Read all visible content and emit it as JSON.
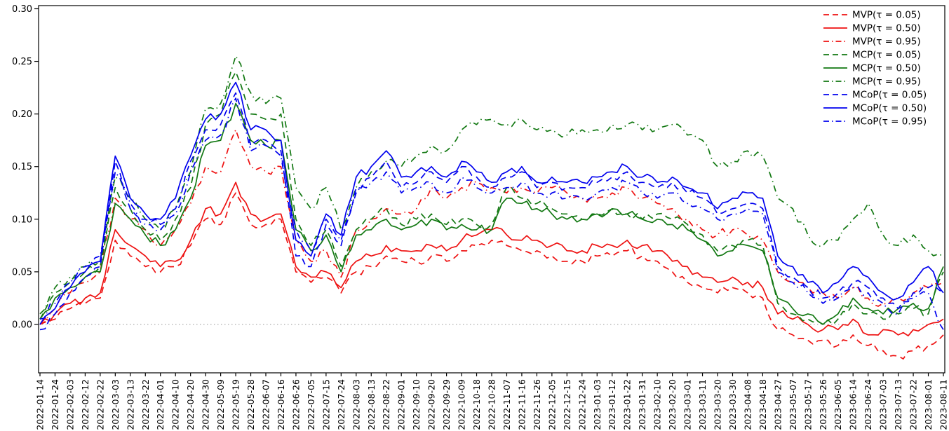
{
  "chart_data": {
    "type": "line",
    "title": "",
    "xlabel": "",
    "ylabel": "",
    "y_ticks": [
      "0.00",
      "0.05",
      "0.10",
      "0.15",
      "0.20",
      "0.25",
      "0.30"
    ],
    "ylim": [
      -0.046,
      0.303
    ],
    "grid": false,
    "zero_line": true,
    "legend_position": "top-right",
    "x": [
      "2022-01-14",
      "2022-01-24",
      "2022-02-03",
      "2022-02-12",
      "2022-02-22",
      "2022-03-03",
      "2022-03-13",
      "2022-03-22",
      "2022-04-01",
      "2022-04-10",
      "2022-04-20",
      "2022-04-30",
      "2022-05-09",
      "2022-05-19",
      "2022-05-28",
      "2022-06-07",
      "2022-06-16",
      "2022-06-26",
      "2022-07-05",
      "2022-07-15",
      "2022-07-24",
      "2022-08-03",
      "2022-08-13",
      "2022-08-22",
      "2022-09-01",
      "2022-09-10",
      "2022-09-20",
      "2022-09-29",
      "2022-10-09",
      "2022-10-18",
      "2022-10-28",
      "2022-11-07",
      "2022-11-16",
      "2022-11-26",
      "2022-12-05",
      "2022-12-15",
      "2022-12-24",
      "2023-01-03",
      "2023-01-12",
      "2023-01-22",
      "2023-01-31",
      "2023-02-10",
      "2023-02-20",
      "2023-03-01",
      "2023-03-11",
      "2023-03-20",
      "2023-03-30",
      "2023-04-08",
      "2023-04-18",
      "2023-04-27",
      "2023-05-07",
      "2023-05-17",
      "2023-05-26",
      "2023-06-05",
      "2023-06-14",
      "2023-06-24",
      "2023-07-03",
      "2023-07-13",
      "2023-07-22",
      "2023-08-01",
      "2023-08-11"
    ],
    "series": [
      {
        "name": "MVP(τ = 0.05)",
        "group": "MVP",
        "tau": 0.05,
        "color": "#ee1111",
        "style": "dashed",
        "values": [
          0.0,
          0.005,
          0.015,
          0.02,
          0.025,
          0.08,
          0.065,
          0.055,
          0.05,
          0.055,
          0.075,
          0.1,
          0.095,
          0.125,
          0.095,
          0.095,
          0.1,
          0.05,
          0.04,
          0.045,
          0.03,
          0.05,
          0.055,
          0.065,
          0.06,
          0.06,
          0.065,
          0.06,
          0.07,
          0.075,
          0.08,
          0.075,
          0.07,
          0.07,
          0.065,
          0.06,
          0.06,
          0.065,
          0.065,
          0.07,
          0.065,
          0.06,
          0.05,
          0.04,
          0.035,
          0.03,
          0.035,
          0.03,
          0.025,
          -0.005,
          -0.01,
          -0.015,
          -0.015,
          -0.02,
          -0.01,
          -0.02,
          -0.025,
          -0.03,
          -0.025,
          -0.02,
          -0.01
        ]
      },
      {
        "name": "MVP(τ = 0.50)",
        "group": "MVP",
        "tau": 0.5,
        "color": "#ee1111",
        "style": "solid",
        "values": [
          0.0,
          0.01,
          0.02,
          0.025,
          0.03,
          0.09,
          0.075,
          0.065,
          0.055,
          0.06,
          0.08,
          0.11,
          0.105,
          0.135,
          0.105,
          0.1,
          0.105,
          0.055,
          0.045,
          0.05,
          0.035,
          0.06,
          0.065,
          0.075,
          0.07,
          0.07,
          0.075,
          0.07,
          0.08,
          0.085,
          0.09,
          0.085,
          0.08,
          0.08,
          0.075,
          0.07,
          0.07,
          0.075,
          0.075,
          0.08,
          0.075,
          0.07,
          0.06,
          0.055,
          0.045,
          0.04,
          0.045,
          0.04,
          0.035,
          0.01,
          0.005,
          0.0,
          -0.005,
          -0.005,
          0.005,
          -0.01,
          -0.005,
          -0.01,
          -0.005,
          0.0,
          0.005
        ]
      },
      {
        "name": "MVP(τ = 0.95)",
        "group": "MVP",
        "tau": 0.95,
        "color": "#ee1111",
        "style": "dashdot",
        "values": [
          0.0,
          0.015,
          0.03,
          0.04,
          0.05,
          0.12,
          0.1,
          0.09,
          0.075,
          0.09,
          0.115,
          0.15,
          0.145,
          0.185,
          0.15,
          0.145,
          0.15,
          0.08,
          0.06,
          0.07,
          0.045,
          0.09,
          0.1,
          0.11,
          0.105,
          0.11,
          0.13,
          0.12,
          0.13,
          0.135,
          0.13,
          0.125,
          0.13,
          0.125,
          0.13,
          0.125,
          0.12,
          0.12,
          0.125,
          0.13,
          0.12,
          0.115,
          0.11,
          0.1,
          0.09,
          0.085,
          0.09,
          0.085,
          0.08,
          0.05,
          0.04,
          0.035,
          0.03,
          0.025,
          0.035,
          0.025,
          0.02,
          0.025,
          0.03,
          0.035,
          0.04
        ]
      },
      {
        "name": "MCP(τ = 0.05)",
        "group": "MCP",
        "tau": 0.05,
        "color": "#127812",
        "style": "dashed",
        "values": [
          0.005,
          0.03,
          0.04,
          0.05,
          0.055,
          0.13,
          0.11,
          0.09,
          0.08,
          0.1,
          0.13,
          0.19,
          0.2,
          0.24,
          0.2,
          0.195,
          0.2,
          0.1,
          0.075,
          0.09,
          0.055,
          0.09,
          0.1,
          0.11,
          0.095,
          0.1,
          0.105,
          0.095,
          0.1,
          0.095,
          0.095,
          0.13,
          0.12,
          0.115,
          0.11,
          0.105,
          0.1,
          0.105,
          0.11,
          0.105,
          0.1,
          0.105,
          0.1,
          0.095,
          0.085,
          0.07,
          0.075,
          0.08,
          0.075,
          0.02,
          0.01,
          0.005,
          0.0,
          0.005,
          0.02,
          0.01,
          0.005,
          0.01,
          0.015,
          0.01,
          0.05
        ]
      },
      {
        "name": "MCP(τ = 0.50)",
        "group": "MCP",
        "tau": 0.5,
        "color": "#127812",
        "style": "solid",
        "values": [
          0.005,
          0.025,
          0.035,
          0.045,
          0.05,
          0.115,
          0.1,
          0.085,
          0.075,
          0.09,
          0.12,
          0.17,
          0.175,
          0.21,
          0.175,
          0.17,
          0.175,
          0.09,
          0.07,
          0.085,
          0.05,
          0.085,
          0.09,
          0.1,
          0.09,
          0.095,
          0.1,
          0.09,
          0.095,
          0.09,
          0.09,
          0.12,
          0.115,
          0.11,
          0.105,
          0.1,
          0.1,
          0.105,
          0.11,
          0.105,
          0.1,
          0.1,
          0.095,
          0.09,
          0.08,
          0.065,
          0.07,
          0.075,
          0.07,
          0.025,
          0.015,
          0.01,
          0.0,
          0.01,
          0.025,
          0.015,
          0.01,
          0.015,
          0.02,
          0.015,
          0.055
        ]
      },
      {
        "name": "MCP(τ = 0.95)",
        "group": "MCP",
        "tau": 0.95,
        "color": "#127812",
        "style": "dashdot",
        "values": [
          0.01,
          0.035,
          0.045,
          0.055,
          0.06,
          0.14,
          0.12,
          0.1,
          0.09,
          0.11,
          0.145,
          0.205,
          0.21,
          0.255,
          0.22,
          0.21,
          0.215,
          0.13,
          0.11,
          0.13,
          0.09,
          0.13,
          0.145,
          0.155,
          0.15,
          0.16,
          0.17,
          0.165,
          0.185,
          0.19,
          0.195,
          0.19,
          0.195,
          0.185,
          0.185,
          0.18,
          0.185,
          0.185,
          0.19,
          0.19,
          0.185,
          0.185,
          0.19,
          0.18,
          0.175,
          0.15,
          0.155,
          0.165,
          0.16,
          0.12,
          0.11,
          0.085,
          0.075,
          0.08,
          0.1,
          0.115,
          0.085,
          0.075,
          0.085,
          0.07,
          0.065
        ]
      },
      {
        "name": "MCoP(τ = 0.05)",
        "group": "MCoP",
        "tau": 0.05,
        "color": "#0000ee",
        "style": "dashed",
        "values": [
          -0.005,
          0.01,
          0.03,
          0.045,
          0.055,
          0.155,
          0.11,
          0.1,
          0.095,
          0.11,
          0.155,
          0.185,
          0.19,
          0.22,
          0.17,
          0.175,
          0.165,
          0.065,
          0.055,
          0.095,
          0.075,
          0.13,
          0.14,
          0.155,
          0.13,
          0.135,
          0.145,
          0.135,
          0.15,
          0.14,
          0.13,
          0.14,
          0.145,
          0.13,
          0.135,
          0.13,
          0.13,
          0.135,
          0.14,
          0.145,
          0.135,
          0.13,
          0.135,
          0.125,
          0.12,
          0.105,
          0.11,
          0.115,
          0.11,
          0.055,
          0.045,
          0.035,
          0.025,
          0.03,
          0.04,
          0.035,
          0.025,
          0.015,
          0.03,
          0.035,
          0.03
        ]
      },
      {
        "name": "MCoP(τ = 0.50)",
        "group": "MCoP",
        "tau": 0.5,
        "color": "#0000ee",
        "style": "solid",
        "values": [
          0.0,
          0.015,
          0.035,
          0.05,
          0.06,
          0.16,
          0.12,
          0.105,
          0.1,
          0.12,
          0.16,
          0.195,
          0.2,
          0.23,
          0.185,
          0.185,
          0.175,
          0.08,
          0.065,
          0.105,
          0.085,
          0.14,
          0.15,
          0.165,
          0.14,
          0.145,
          0.15,
          0.14,
          0.155,
          0.145,
          0.135,
          0.145,
          0.15,
          0.135,
          0.14,
          0.135,
          0.135,
          0.14,
          0.145,
          0.15,
          0.14,
          0.135,
          0.14,
          0.13,
          0.125,
          0.11,
          0.12,
          0.125,
          0.12,
          0.065,
          0.055,
          0.04,
          0.03,
          0.04,
          0.055,
          0.045,
          0.03,
          0.025,
          0.04,
          0.055,
          0.03
        ]
      },
      {
        "name": "MCoP(τ = 0.95)",
        "group": "MCoP",
        "tau": 0.95,
        "color": "#0000ee",
        "style": "dashdot",
        "values": [
          0.005,
          0.02,
          0.04,
          0.055,
          0.065,
          0.145,
          0.115,
          0.095,
          0.09,
          0.105,
          0.145,
          0.175,
          0.18,
          0.215,
          0.165,
          0.17,
          0.16,
          0.09,
          0.07,
          0.1,
          0.08,
          0.125,
          0.135,
          0.145,
          0.125,
          0.13,
          0.135,
          0.125,
          0.14,
          0.13,
          0.125,
          0.13,
          0.135,
          0.125,
          0.125,
          0.12,
          0.12,
          0.125,
          0.13,
          0.135,
          0.125,
          0.12,
          0.125,
          0.115,
          0.11,
          0.1,
          0.105,
          0.11,
          0.105,
          0.05,
          0.04,
          0.03,
          0.02,
          0.025,
          0.035,
          0.03,
          0.02,
          0.01,
          0.025,
          0.03,
          -0.005
        ]
      }
    ]
  }
}
